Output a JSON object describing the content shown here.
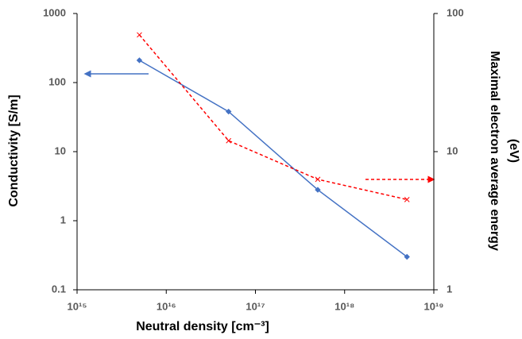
{
  "chart_data": {
    "type": "line",
    "xlabel": "Neutral density [cm⁻³]",
    "ylabel": "Conductivity [S/m]",
    "y2label": [
      "Maximal electron average energy",
      "(eV)"
    ],
    "xscale": "log",
    "yscale": "log",
    "y2scale": "log",
    "xlim": [
      1000000000000000.0,
      1e+19
    ],
    "xticks": [
      {
        "value": 1000000000000000.0,
        "label": "10¹⁵"
      },
      {
        "value": 1e+16,
        "label": "10¹⁶"
      },
      {
        "value": 1e+17,
        "label": "10¹⁷"
      },
      {
        "value": 1e+18,
        "label": "10¹⁸"
      },
      {
        "value": 1e+19,
        "label": "10¹⁹"
      }
    ],
    "ylim": [
      0.1,
      1000
    ],
    "yticks": [
      0.1,
      1,
      10,
      100,
      1000
    ],
    "y2lim": [
      1,
      100
    ],
    "y2ticks": [
      1,
      10,
      100
    ],
    "x": [
      5000000000000000.0,
      5e+16,
      5e+17,
      5e+18
    ],
    "series": [
      {
        "color": "#4472c4",
        "style": "solid",
        "marker": "diamond",
        "values": [
          210,
          38,
          2.8,
          0.3
        ]
      },
      {
        "color": "#ff0000",
        "style": "dashed",
        "marker": "x",
        "axis": "y2",
        "values": [
          70,
          12,
          6.3,
          4.5
        ]
      }
    ]
  }
}
